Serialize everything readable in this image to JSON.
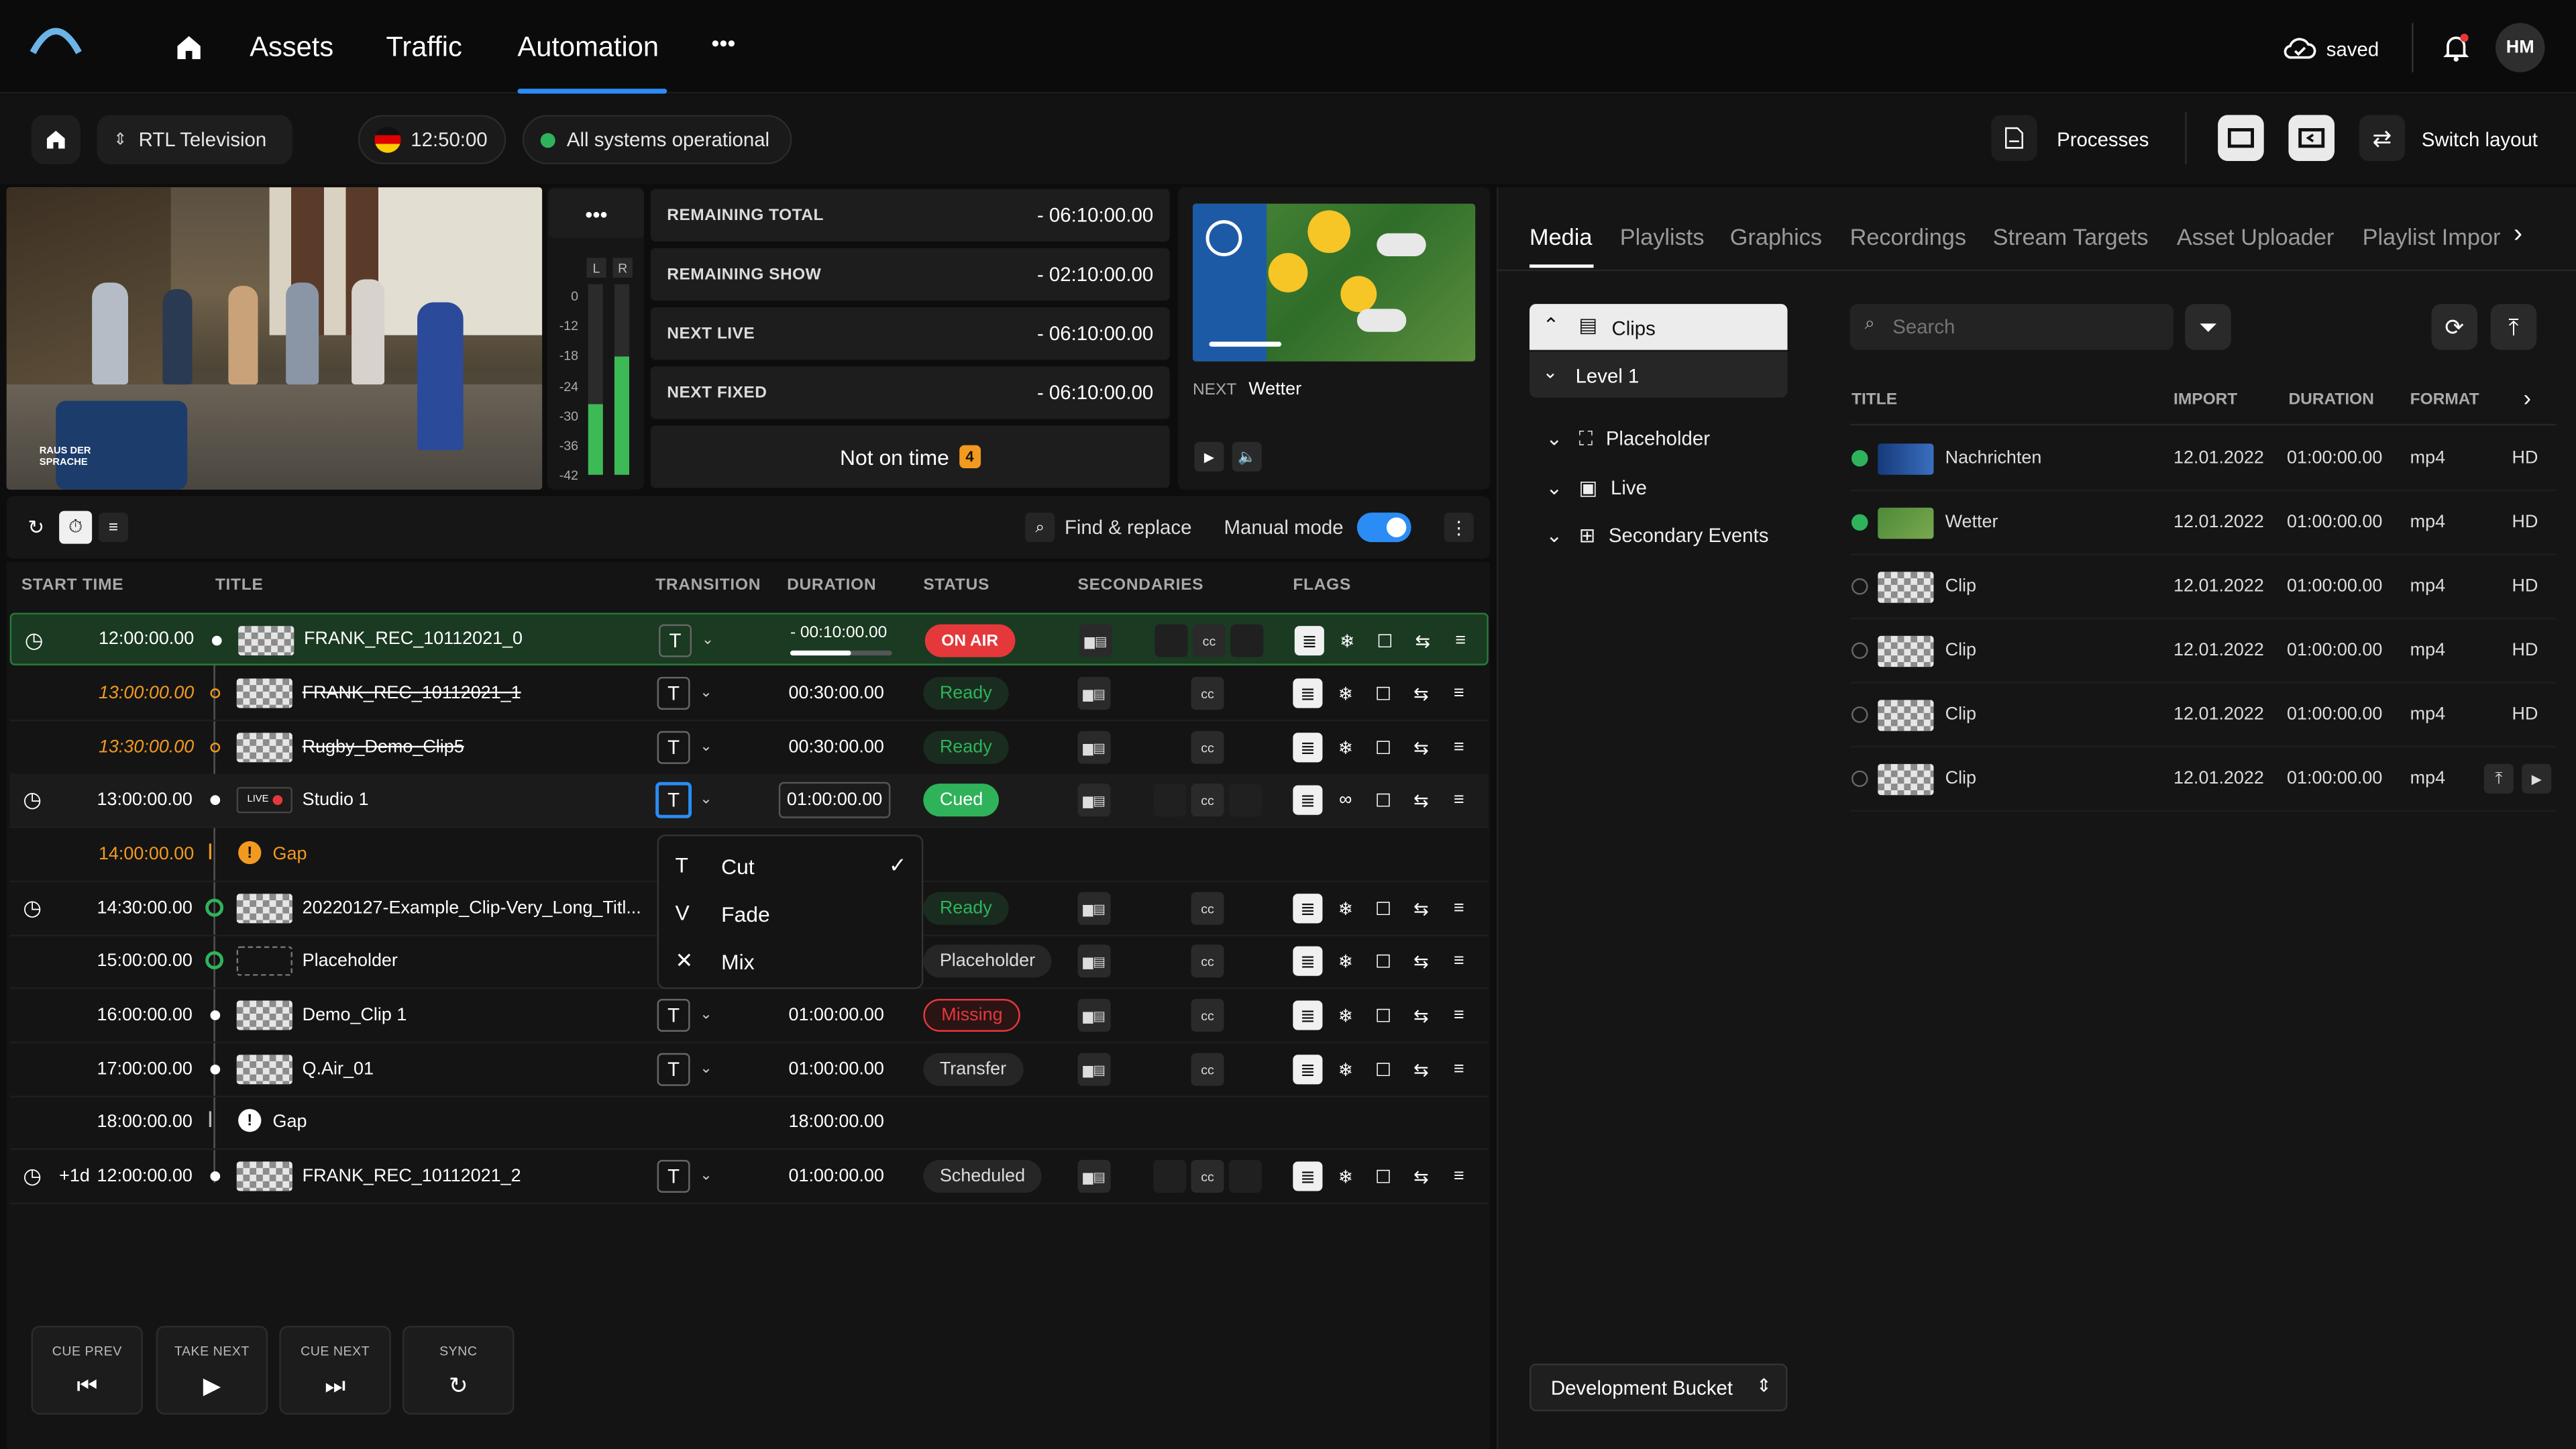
{
  "nav": {
    "items": [
      "Assets",
      "Traffic",
      "Automation"
    ],
    "more": "•••",
    "saved": "saved",
    "user_initials": "HM"
  },
  "toolbar": {
    "channel": "RTL Television",
    "clock": "12:50:00",
    "status": "All systems operational",
    "processes": "Processes",
    "switch_layout": "Switch layout"
  },
  "preview": {
    "caption": "RAUS DER SPRACHE",
    "meter_labels": [
      "L",
      "R"
    ],
    "meter_scale": [
      "0",
      "-12",
      "-18",
      "-24",
      "-30",
      "-36",
      "-42"
    ],
    "meter_levels": [
      0.37,
      0.62
    ],
    "more": "•••"
  },
  "timers": [
    {
      "label": "REMAINING TOTAL",
      "value": "- 06:10:00.00"
    },
    {
      "label": "REMAINING SHOW",
      "value": "- 02:10:00.00"
    },
    {
      "label": "NEXT LIVE",
      "value": "- 06:10:00.00"
    },
    {
      "label": "NEXT FIXED",
      "value": "- 06:10:00.00"
    }
  ],
  "not_on_time": {
    "label": "Not on time",
    "count": "4"
  },
  "next": {
    "label": "NEXT",
    "title": "Wetter"
  },
  "playlist_toolbar": {
    "find_replace": "Find & replace",
    "manual_mode": "Manual mode",
    "manual_mode_on": true
  },
  "columns": {
    "start": "START TIME",
    "title": "TITLE",
    "transition": "TRANSITION",
    "duration": "DURATION",
    "status": "STATUS",
    "secondaries": "SECONDARIES",
    "flags": "FLAGS"
  },
  "rows": [
    {
      "prefix": "",
      "time": "12:00:00.00",
      "title": "FRANK_REC_10112021_0",
      "duration": "- 00:10:00.00",
      "status": "ON AIR",
      "progress": 0.6
    },
    {
      "prefix": "",
      "time": "13:00:00.00",
      "title": "FRANK_REC_10112021_1",
      "duration": "00:30:00.00",
      "status": "Ready"
    },
    {
      "prefix": "",
      "time": "13:30:00.00",
      "title": "Rugby_Demo_Clip5",
      "duration": "00:30:00.00",
      "status": "Ready"
    },
    {
      "prefix": "",
      "time": "13:00:00.00",
      "title": "Studio 1",
      "duration": "01:00:00.00",
      "status": "Cued",
      "live": "LIVE"
    },
    {
      "prefix": "",
      "time": "14:00:00.00",
      "title": "Gap",
      "duration": "",
      "status": ""
    },
    {
      "prefix": "",
      "time": "14:30:00.00",
      "title": "20220127-Example_Clip-Very_Long_Titl...",
      "duration": "",
      "status": "Ready"
    },
    {
      "prefix": "",
      "time": "15:00:00.00",
      "title": "Placeholder",
      "duration": "",
      "status": "Placeholder"
    },
    {
      "prefix": "",
      "time": "16:00:00.00",
      "title": "Demo_Clip 1",
      "duration": "01:00:00.00",
      "status": "Missing"
    },
    {
      "prefix": "",
      "time": "17:00:00.00",
      "title": "Q.Air_01",
      "duration": "01:00:00.00",
      "status": "Transfer"
    },
    {
      "prefix": "",
      "time": "18:00:00.00",
      "title": "Gap",
      "duration": "18:00:00.00",
      "status": ""
    },
    {
      "prefix": "+1d",
      "time": "12:00:00.00",
      "title": "FRANK_REC_10112021_2",
      "duration": "01:00:00.00",
      "status": "Scheduled"
    }
  ],
  "transition_menu": {
    "options": [
      "Cut",
      "Fade",
      "Mix"
    ],
    "selected": "Cut"
  },
  "controls": [
    "CUE PREV",
    "TAKE NEXT",
    "CUE NEXT",
    "SYNC"
  ],
  "media_tabs": [
    "Media",
    "Playlists",
    "Graphics",
    "Recordings",
    "Stream Targets",
    "Asset Uploader",
    "Playlist Impor"
  ],
  "media_tree": {
    "clips": "Clips",
    "level1": "Level 1",
    "placeholder": "Placeholder",
    "live": "Live",
    "secondary": "Secondary Events"
  },
  "search": {
    "placeholder": "Search"
  },
  "media_cols": {
    "title": "TITLE",
    "import": "IMPORT",
    "duration": "DURATION",
    "format": "FORMAT"
  },
  "media_rows": [
    {
      "title": "Nachrichten",
      "import": "12.01.2022",
      "duration": "01:00:00.00",
      "format": "mp4",
      "hd": "HD",
      "status": "#2fb35a"
    },
    {
      "title": "Wetter",
      "import": "12.01.2022",
      "duration": "01:00:00.00",
      "format": "mp4",
      "hd": "HD",
      "status": "#2fb35a"
    },
    {
      "title": "Clip",
      "import": "12.01.2022",
      "duration": "01:00:00.00",
      "format": "mp4",
      "hd": "HD",
      "status": ""
    },
    {
      "title": "Clip",
      "import": "12.01.2022",
      "duration": "01:00:00.00",
      "format": "mp4",
      "hd": "HD",
      "status": ""
    },
    {
      "title": "Clip",
      "import": "12.01.2022",
      "duration": "01:00:00.00",
      "format": "mp4",
      "hd": "HD",
      "status": ""
    },
    {
      "title": "Clip",
      "import": "12.01.2022",
      "duration": "01:00:00.00",
      "format": "mp4",
      "hd": "",
      "status": ""
    }
  ],
  "bucket": "Development Bucket",
  "colors": {
    "accent": "#2b8cf5",
    "on_air": "#e5383b",
    "ready": "#2fb35a",
    "warning": "#f29a1f",
    "missing": "#e5383b"
  }
}
